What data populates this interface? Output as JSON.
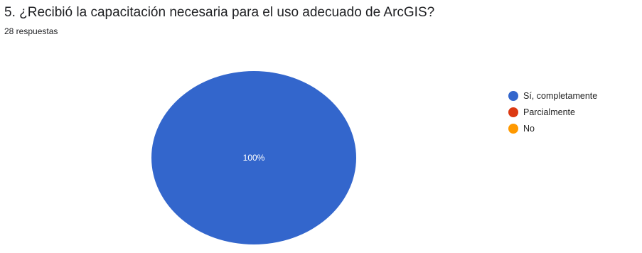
{
  "header": {
    "title": "5. ¿Recibió la capacitación necesaria para el uso adecuado de ArcGIS?",
    "subtitle": "28 respuestas"
  },
  "chart_data": {
    "type": "pie",
    "title": "5. ¿Recibió la capacitación necesaria para el uso adecuado de ArcGIS?",
    "subtitle": "28 respuestas",
    "legend_position": "right",
    "slices": [
      {
        "label": "Sí, completamente",
        "value": 100,
        "display": "100%",
        "color": "#3366cc"
      },
      {
        "label": "Parcialmente",
        "value": 0,
        "display": "",
        "color": "#dc3912"
      },
      {
        "label": "No",
        "value": 0,
        "display": "",
        "color": "#ff9900"
      }
    ]
  }
}
